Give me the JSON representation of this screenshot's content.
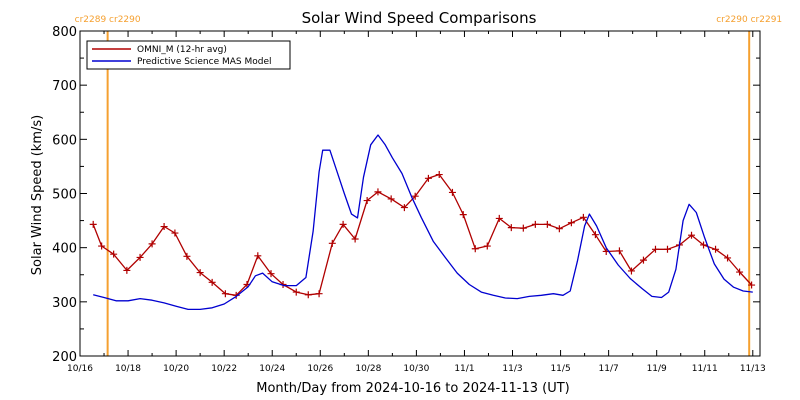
{
  "chart_data": {
    "type": "line",
    "title": "Solar Wind Speed Comparisons",
    "xlabel": "Month/Day from 2024-10-16 to 2024-11-13 (UT)",
    "ylabel": "Solar Wind Speed (km/s)",
    "x_unit": "days from 2024-10-16 00:00 UT",
    "xlim": [
      0,
      28.3
    ],
    "ylim": [
      200,
      800
    ],
    "x_ticks": [
      {
        "x": 0,
        "label": "10/16"
      },
      {
        "x": 2,
        "label": "10/18"
      },
      {
        "x": 4,
        "label": "10/20"
      },
      {
        "x": 6,
        "label": "10/22"
      },
      {
        "x": 8,
        "label": "10/24"
      },
      {
        "x": 10,
        "label": "10/26"
      },
      {
        "x": 12,
        "label": "10/28"
      },
      {
        "x": 14,
        "label": "10/30"
      },
      {
        "x": 16,
        "label": "11/1"
      },
      {
        "x": 18,
        "label": "11/3"
      },
      {
        "x": 20,
        "label": "11/5"
      },
      {
        "x": 22,
        "label": "11/7"
      },
      {
        "x": 24,
        "label": "11/9"
      },
      {
        "x": 26,
        "label": "11/11"
      },
      {
        "x": 28,
        "label": "11/13"
      }
    ],
    "y_ticks": [
      200,
      300,
      400,
      500,
      600,
      700,
      800
    ],
    "grid": false,
    "legend_position": "top-left",
    "carrington_markers": [
      {
        "x": 1.15,
        "labels": [
          "cr2289",
          "cr2290"
        ],
        "color": "#f5a030"
      },
      {
        "x": 27.85,
        "labels": [
          "cr2290",
          "cr2291"
        ],
        "color": "#f5a030"
      }
    ],
    "series": [
      {
        "name": "OMNI_M (12-hr avg)",
        "color": "#b00000",
        "marker": "plus",
        "points": [
          [
            0.55,
            443
          ],
          [
            0.9,
            403
          ],
          [
            1.4,
            388
          ],
          [
            1.95,
            358
          ],
          [
            2.5,
            382
          ],
          [
            3.0,
            407
          ],
          [
            3.5,
            439
          ],
          [
            3.95,
            427
          ],
          [
            4.45,
            384
          ],
          [
            5.0,
            354
          ],
          [
            5.5,
            336
          ],
          [
            6.05,
            315
          ],
          [
            6.5,
            312
          ],
          [
            6.95,
            332
          ],
          [
            7.4,
            385
          ],
          [
            7.95,
            352
          ],
          [
            8.45,
            332
          ],
          [
            9.0,
            318
          ],
          [
            9.5,
            313
          ],
          [
            9.95,
            315
          ],
          [
            10.5,
            408
          ],
          [
            10.95,
            443
          ],
          [
            11.45,
            416
          ],
          [
            11.95,
            487
          ],
          [
            12.4,
            503
          ],
          [
            12.95,
            490
          ],
          [
            13.5,
            474
          ],
          [
            13.95,
            495
          ],
          [
            14.5,
            528
          ],
          [
            14.95,
            535
          ],
          [
            15.5,
            502
          ],
          [
            15.95,
            461
          ],
          [
            16.45,
            398
          ],
          [
            16.95,
            403
          ],
          [
            17.45,
            454
          ],
          [
            17.95,
            437
          ],
          [
            18.45,
            436
          ],
          [
            18.95,
            443
          ],
          [
            19.45,
            443
          ],
          [
            19.95,
            435
          ],
          [
            20.45,
            446
          ],
          [
            20.95,
            456
          ],
          [
            21.45,
            424
          ],
          [
            21.9,
            393
          ],
          [
            22.45,
            394
          ],
          [
            22.95,
            357
          ],
          [
            23.45,
            377
          ],
          [
            23.95,
            397
          ],
          [
            24.45,
            397
          ],
          [
            24.95,
            405
          ],
          [
            25.45,
            423
          ],
          [
            25.95,
            405
          ],
          [
            26.45,
            397
          ],
          [
            26.95,
            381
          ],
          [
            27.45,
            355
          ],
          [
            27.95,
            331
          ]
        ]
      },
      {
        "name": "Predictive Science MAS Model",
        "color": "#0000d0",
        "marker": "none",
        "points": [
          [
            0.55,
            313
          ],
          [
            1.0,
            308
          ],
          [
            1.5,
            302
          ],
          [
            2.0,
            302
          ],
          [
            2.5,
            306
          ],
          [
            3.0,
            303
          ],
          [
            3.5,
            298
          ],
          [
            4.0,
            292
          ],
          [
            4.5,
            286
          ],
          [
            5.0,
            286
          ],
          [
            5.5,
            289
          ],
          [
            6.0,
            296
          ],
          [
            6.5,
            310
          ],
          [
            7.0,
            328
          ],
          [
            7.3,
            348
          ],
          [
            7.6,
            353
          ],
          [
            8.0,
            337
          ],
          [
            8.5,
            330
          ],
          [
            9.0,
            330
          ],
          [
            9.4,
            345
          ],
          [
            9.7,
            430
          ],
          [
            9.95,
            540
          ],
          [
            10.1,
            580
          ],
          [
            10.4,
            580
          ],
          [
            10.7,
            540
          ],
          [
            11.0,
            500
          ],
          [
            11.3,
            462
          ],
          [
            11.55,
            455
          ],
          [
            11.8,
            530
          ],
          [
            12.1,
            590
          ],
          [
            12.4,
            608
          ],
          [
            12.7,
            590
          ],
          [
            13.0,
            566
          ],
          [
            13.4,
            537
          ],
          [
            13.8,
            494
          ],
          [
            14.2,
            456
          ],
          [
            14.7,
            412
          ],
          [
            15.2,
            382
          ],
          [
            15.7,
            353
          ],
          [
            16.2,
            332
          ],
          [
            16.7,
            318
          ],
          [
            17.2,
            312
          ],
          [
            17.7,
            307
          ],
          [
            18.2,
            306
          ],
          [
            18.7,
            310
          ],
          [
            19.2,
            312
          ],
          [
            19.7,
            315
          ],
          [
            20.1,
            312
          ],
          [
            20.4,
            320
          ],
          [
            20.7,
            375
          ],
          [
            21.0,
            440
          ],
          [
            21.2,
            462
          ],
          [
            21.5,
            440
          ],
          [
            21.9,
            400
          ],
          [
            22.4,
            368
          ],
          [
            22.9,
            343
          ],
          [
            23.4,
            324
          ],
          [
            23.8,
            310
          ],
          [
            24.2,
            308
          ],
          [
            24.5,
            318
          ],
          [
            24.8,
            360
          ],
          [
            25.1,
            450
          ],
          [
            25.35,
            480
          ],
          [
            25.65,
            465
          ],
          [
            26.0,
            418
          ],
          [
            26.4,
            370
          ],
          [
            26.8,
            342
          ],
          [
            27.2,
            327
          ],
          [
            27.6,
            320
          ],
          [
            28.0,
            318
          ]
        ]
      }
    ]
  }
}
